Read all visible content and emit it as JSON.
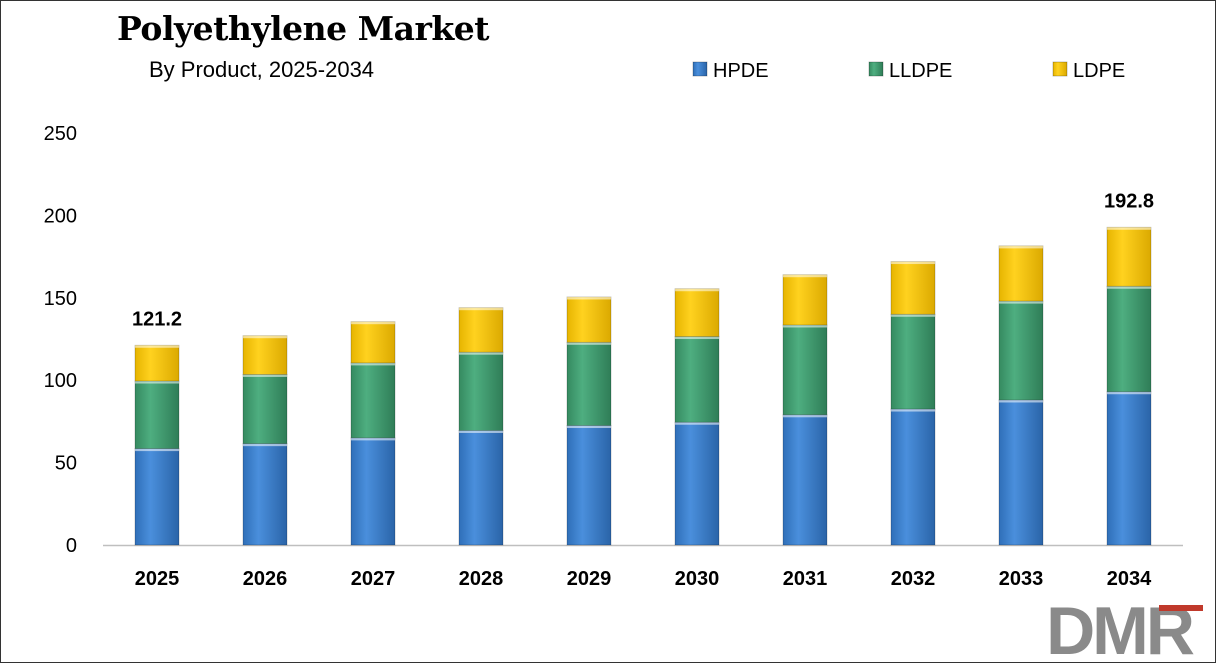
{
  "header": {
    "title": "Polyethylene Market",
    "subtitle": "By Product, 2025-2034"
  },
  "logo": {
    "text": "DMR",
    "colors": [
      "#8a8a8a",
      "#c0392b"
    ]
  },
  "chart_data": {
    "type": "bar",
    "stacked": true,
    "title": "Polyethylene Market",
    "subtitle": "By Product, 2025-2034",
    "xlabel": "",
    "ylabel": "",
    "categories": [
      "2025",
      "2026",
      "2027",
      "2028",
      "2029",
      "2030",
      "2031",
      "2032",
      "2033",
      "2034"
    ],
    "series": [
      {
        "name": "HPDE",
        "color": "#3a7cc8",
        "values": [
          58.5,
          61.5,
          65.0,
          69.5,
          72.5,
          74.5,
          79.0,
          82.5,
          88.0,
          93.0
        ]
      },
      {
        "name": "LLDPE",
        "color": "#3f9a6e",
        "values": [
          41.0,
          42.0,
          45.5,
          47.5,
          50.5,
          52.0,
          54.5,
          57.5,
          60.0,
          64.0
        ]
      },
      {
        "name": "LDPE",
        "color": "#f2c200",
        "values": [
          21.7,
          23.5,
          25.0,
          27.0,
          27.5,
          29.0,
          30.5,
          32.0,
          33.5,
          35.8
        ]
      }
    ],
    "totals": [
      121.2,
      127.0,
      135.5,
      144.0,
      150.5,
      155.5,
      164.0,
      172.0,
      181.5,
      192.8
    ],
    "data_labels": [
      {
        "category": "2025",
        "text": "121.2"
      },
      {
        "category": "2034",
        "text": "192.8"
      }
    ],
    "ylim": [
      0,
      250
    ],
    "yticks": [
      "0",
      "50",
      "100",
      "150",
      "200",
      "250"
    ],
    "grid": false,
    "legend": "top-right"
  }
}
